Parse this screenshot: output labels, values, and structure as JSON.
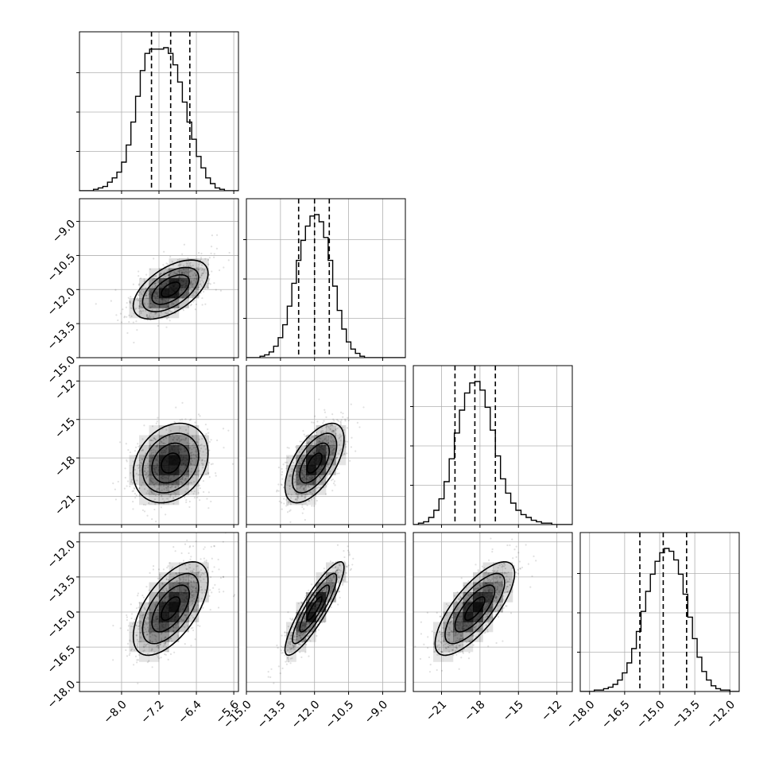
{
  "colors": {
    "background": "#ffffff",
    "line": "#000000",
    "grid": "#b0b0b0",
    "scatter": "#000000",
    "density": "#000000"
  },
  "chart_data": {
    "type": "corner",
    "title": "",
    "dims": 4,
    "grid": true,
    "param_labels": [],
    "ranges": [
      [
        -8.9,
        -5.5
      ],
      [
        -15.0,
        -8.0
      ],
      [
        -23.2,
        -10.8
      ],
      [
        -18.4,
        -11.6
      ]
    ],
    "ticks": [
      [
        -8.0,
        -7.2,
        -6.4,
        -5.6
      ],
      [
        -15.0,
        -13.5,
        -12.0,
        -10.5,
        -9.0
      ],
      [
        -21,
        -18,
        -15,
        -12
      ],
      [
        -18.0,
        -16.5,
        -15.0,
        -13.5,
        -12.0
      ]
    ],
    "tick_labels": [
      [
        "−8.0",
        "−7.2",
        "−6.4",
        "−5.6"
      ],
      [
        "−15.0",
        "−13.5",
        "−12.0",
        "−10.5",
        "−9.0"
      ],
      [
        "−21",
        "−18",
        "−15",
        "−12"
      ],
      [
        "−18.0",
        "−16.5",
        "−15.0",
        "−13.5",
        "−12.0"
      ]
    ],
    "quantiles": [
      [
        -7.36,
        -6.95,
        -6.54
      ],
      [
        -12.7,
        -12.0,
        -11.35
      ],
      [
        -19.95,
        -18.4,
        -16.8
      ],
      [
        -15.85,
        -14.85,
        -13.85
      ]
    ],
    "histograms": [
      {
        "bins": [
          -8.9,
          -8.8,
          -8.7,
          -8.6,
          -8.5,
          -8.4,
          -8.3,
          -8.2,
          -8.1,
          -8.0,
          -7.9,
          -7.8,
          -7.7,
          -7.6,
          -7.5,
          -7.4,
          -7.3,
          -7.2,
          -7.1,
          -7.0,
          -6.9,
          -6.8,
          -6.7,
          -6.6,
          -6.5,
          -6.4,
          -6.3,
          -6.2,
          -6.1,
          -6.0,
          -5.9,
          -5.8,
          -5.7,
          -5.6,
          -5.5
        ],
        "counts": [
          0,
          0,
          0,
          1,
          2,
          3,
          6,
          9,
          13,
          20,
          32,
          48,
          66,
          84,
          96,
          99,
          99,
          99,
          100,
          96,
          88,
          76,
          62,
          48,
          36,
          24,
          16,
          9,
          5,
          2,
          1,
          0,
          0,
          0
        ]
      },
      {
        "bins": [
          -15.0,
          -14.8,
          -14.6,
          -14.4,
          -14.2,
          -14.0,
          -13.8,
          -13.6,
          -13.4,
          -13.2,
          -13.0,
          -12.8,
          -12.6,
          -12.4,
          -12.2,
          -12.0,
          -11.8,
          -11.6,
          -11.4,
          -11.2,
          -11.0,
          -10.8,
          -10.6,
          -10.4,
          -10.2,
          -10.0,
          -9.8,
          -9.6,
          -9.4,
          -9.2,
          -9.0,
          -8.8,
          -8.6,
          -8.4,
          -8.2,
          -8.0
        ],
        "counts": [
          0,
          0,
          0,
          1,
          2,
          4,
          8,
          14,
          23,
          36,
          52,
          68,
          82,
          92,
          99,
          100,
          95,
          84,
          68,
          50,
          33,
          20,
          11,
          6,
          3,
          1,
          0,
          0,
          0,
          0,
          0,
          0,
          0,
          0,
          0
        ]
      },
      {
        "bins": [
          -23.2,
          -22.8,
          -22.4,
          -22.0,
          -21.6,
          -21.2,
          -20.8,
          -20.4,
          -20.0,
          -19.6,
          -19.2,
          -18.8,
          -18.4,
          -18.0,
          -17.6,
          -17.2,
          -16.8,
          -16.4,
          -16.0,
          -15.6,
          -15.2,
          -14.8,
          -14.4,
          -14.0,
          -13.6,
          -13.2,
          -12.8,
          -12.4,
          -12.0,
          -11.6,
          -11.2,
          -10.8
        ],
        "counts": [
          0,
          1,
          2,
          5,
          10,
          18,
          30,
          46,
          64,
          80,
          92,
          99,
          100,
          94,
          82,
          66,
          48,
          32,
          22,
          15,
          10,
          7,
          5,
          3,
          2,
          1,
          1,
          0,
          0,
          0,
          0
        ]
      },
      {
        "bins": [
          -18.4,
          -18.2,
          -18.0,
          -17.8,
          -17.6,
          -17.4,
          -17.2,
          -17.0,
          -16.8,
          -16.6,
          -16.4,
          -16.2,
          -16.0,
          -15.8,
          -15.6,
          -15.4,
          -15.2,
          -15.0,
          -14.8,
          -14.6,
          -14.4,
          -14.2,
          -14.0,
          -13.8,
          -13.6,
          -13.4,
          -13.2,
          -13.0,
          -12.8,
          -12.6,
          -12.4,
          -12.2,
          -12.0,
          -11.8,
          -11.6
        ],
        "counts": [
          0,
          0,
          0,
          1,
          1,
          2,
          3,
          5,
          8,
          13,
          20,
          30,
          42,
          56,
          70,
          82,
          91,
          97,
          100,
          98,
          92,
          82,
          68,
          52,
          37,
          24,
          14,
          8,
          4,
          2,
          1,
          1,
          0,
          0
        ]
      }
    ],
    "gaussians": {
      "means": [
        -6.95,
        -12.0,
        -18.4,
        -14.85
      ],
      "sigmas": [
        0.4,
        0.65,
        1.55,
        1.0
      ],
      "correlations": [
        [
          1.0,
          0.55,
          0.25,
          0.6
        ],
        [
          0.55,
          1.0,
          0.6,
          0.88
        ],
        [
          0.25,
          0.6,
          1.0,
          0.75
        ],
        [
          0.6,
          0.88,
          0.75,
          1.0
        ]
      ],
      "contour_levels_sigma": [
        0.5,
        1.0,
        1.5,
        2.0
      ]
    }
  }
}
